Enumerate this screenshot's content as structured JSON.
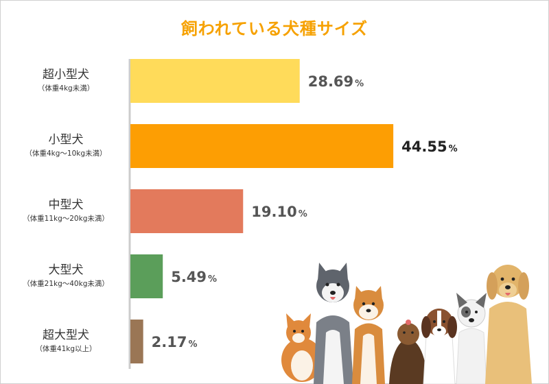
{
  "chart_data": {
    "type": "bar",
    "orientation": "horizontal",
    "title": "飼われている犬種サイズ",
    "categories": [
      "超小型犬",
      "小型犬",
      "中型犬",
      "大型犬",
      "超大型犬"
    ],
    "category_sublabels": [
      "（体重4kg未満）",
      "（体重4kg〜10kg未満）",
      "（体重11kg〜20kg未満）",
      "（体重21kg〜40kg未満）",
      "（体重41kg以上）"
    ],
    "values": [
      28.69,
      44.55,
      19.1,
      5.49,
      2.17
    ],
    "value_labels": [
      "28.69",
      "44.55",
      "19.10",
      "5.49",
      "2.17"
    ],
    "unit": "%",
    "colors": [
      "#ffdb5a",
      "#fd9e03",
      "#e37a5c",
      "#5b9e5a",
      "#9a7655"
    ],
    "highlight_index": 1,
    "xlim": [
      0,
      50
    ],
    "grid": false,
    "legend": "none"
  },
  "decoration": {
    "image": "illustration of a group of dogs"
  }
}
